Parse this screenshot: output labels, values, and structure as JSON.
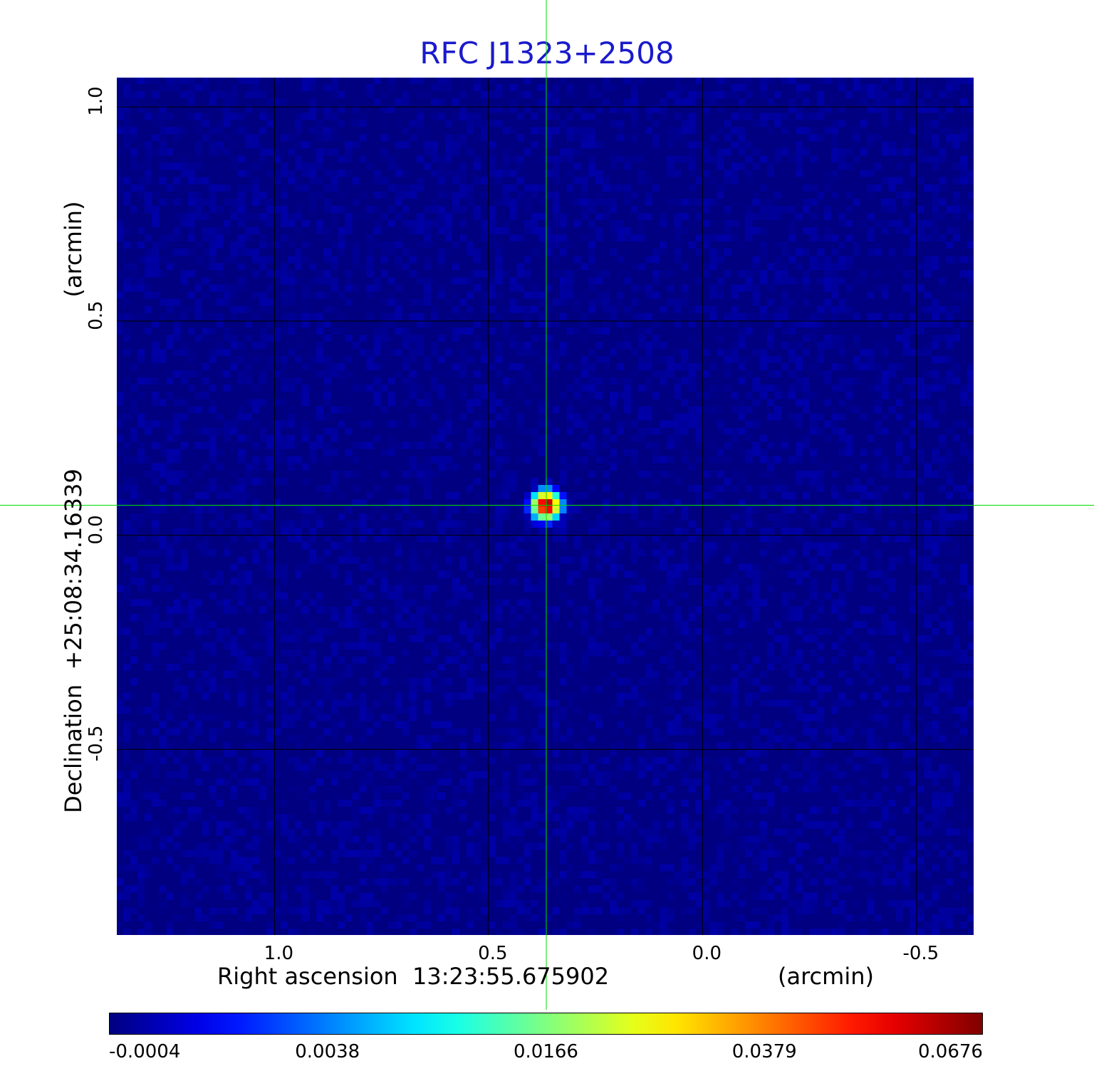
{
  "chart_data": {
    "type": "heatmap",
    "title": "RFC J1323+2508",
    "xlabel": "Right ascension  13:23:55.675902",
    "x_unit": "(arcmin)",
    "ylabel": "Declination  +25:08:34.16339",
    "y_unit": "(arcmin)",
    "x_ticks": [
      "1.0",
      "0.5",
      "0.0",
      "-0.5"
    ],
    "x_tick_values": [
      1.0,
      0.5,
      0.0,
      -0.5
    ],
    "y_ticks": [
      "1.0",
      "0.5",
      "0.0",
      "-0.5"
    ],
    "y_tick_values": [
      1.0,
      0.5,
      0.0,
      -0.5
    ],
    "xlim": [
      1.37,
      -0.635
    ],
    "ylim": [
      -0.935,
      1.07
    ],
    "grid": true,
    "crosshair": {
      "x": 0.365,
      "y": 0.07,
      "color": "#00dd00"
    },
    "source": {
      "x": 0.365,
      "y": 0.07,
      "peak": 0.0676
    },
    "background_level": -0.0004,
    "colormap": "jet",
    "colorbar": {
      "ticks": [
        "-0.0004",
        "0.0038",
        "0.0166",
        "0.0379",
        "0.0676"
      ],
      "tick_values": [
        -0.0004,
        0.0038,
        0.0166,
        0.0379,
        0.0676
      ],
      "placement": "bottom"
    }
  }
}
